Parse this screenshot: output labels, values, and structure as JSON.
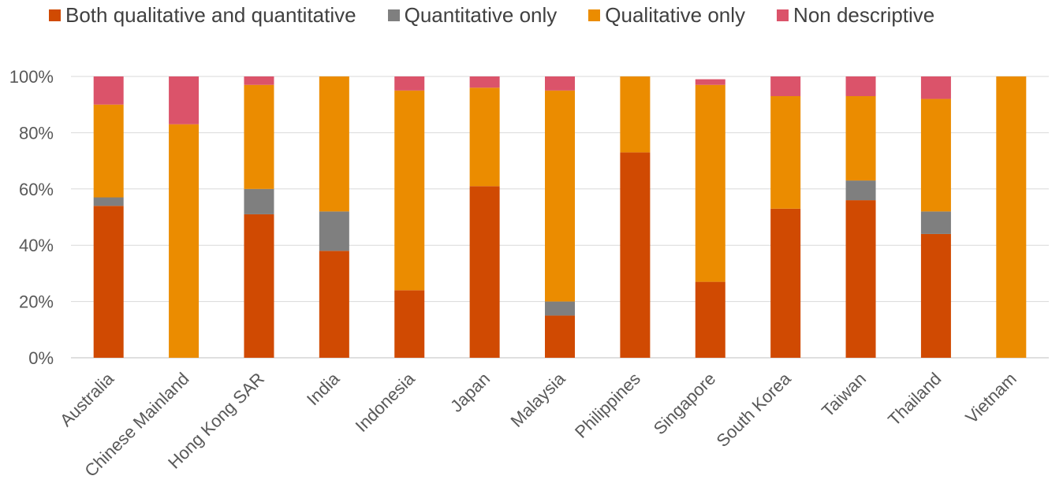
{
  "chart_data": {
    "type": "bar",
    "stacked": true,
    "categories": [
      "Australia",
      "Chinese Mainland",
      "Hong Kong SAR",
      "India",
      "Indonesia",
      "Japan",
      "Malaysia",
      "Philippines",
      "Singapore",
      "South Korea",
      "Taiwan",
      "Thailand",
      "Vietnam"
    ],
    "series": [
      {
        "name": "Both qualitative and quantitative",
        "color": "#d04a02",
        "values": [
          54,
          0,
          51,
          38,
          24,
          61,
          15,
          73,
          27,
          53,
          56,
          44,
          0
        ]
      },
      {
        "name": "Quantitative only",
        "color": "#7f7f7f",
        "values": [
          3,
          0,
          9,
          14,
          0,
          0,
          5,
          0,
          0,
          0,
          7,
          8,
          0
        ]
      },
      {
        "name": "Qualitative only",
        "color": "#eb8c00",
        "values": [
          33,
          83,
          37,
          48,
          71,
          35,
          75,
          27,
          70,
          40,
          30,
          40,
          100
        ]
      },
      {
        "name": "Non descriptive",
        "color": "#db536a",
        "values": [
          10,
          17,
          3,
          0,
          5,
          4,
          5,
          0,
          2,
          7,
          7,
          8,
          0
        ]
      }
    ],
    "yticks": [
      "0%",
      "20%",
      "40%",
      "60%",
      "80%",
      "100%"
    ],
    "ylim": [
      0,
      100
    ],
    "legend_position": "top",
    "grid": true
  }
}
